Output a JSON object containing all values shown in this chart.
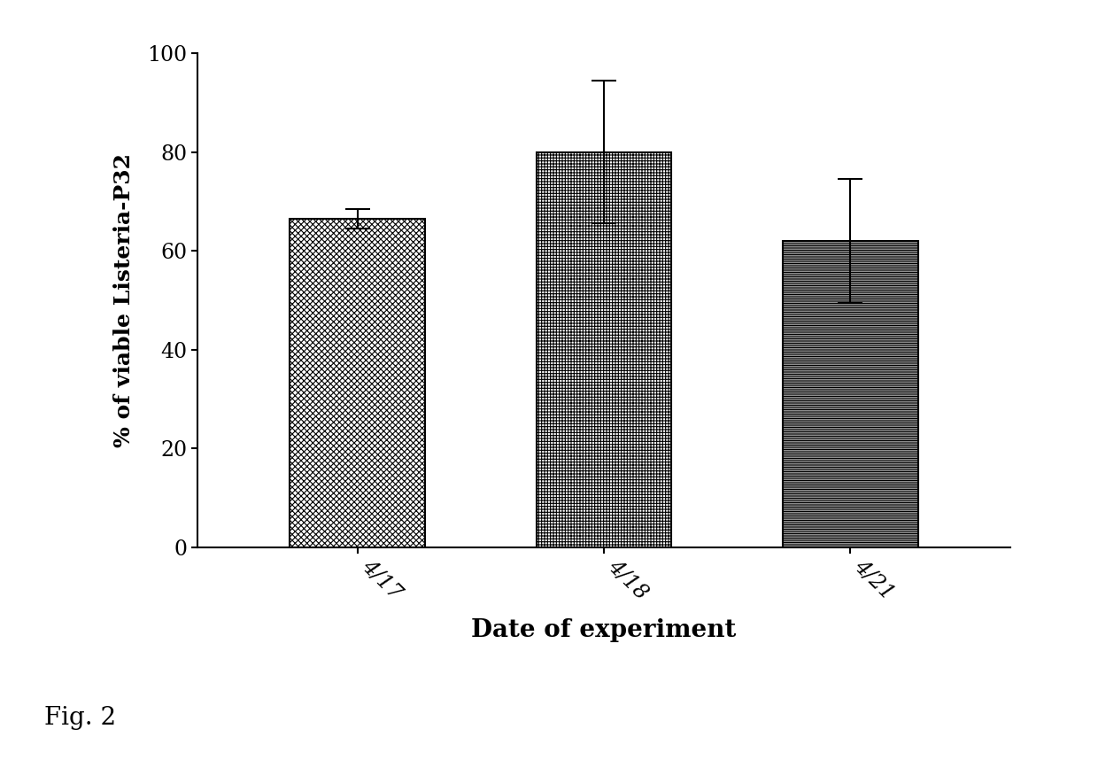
{
  "categories": [
    "4/17",
    "4/18",
    "4/21"
  ],
  "values": [
    66.5,
    80.0,
    62.0
  ],
  "errors": [
    2.0,
    14.5,
    12.5
  ],
  "xlabel": "Date of experiment",
  "ylabel": "% of viable Listeria-P32",
  "ylim": [
    0,
    100
  ],
  "yticks": [
    0,
    20,
    40,
    60,
    80,
    100
  ],
  "fig_caption": "Fig. 2",
  "background_color": "#ffffff",
  "bar_edge_color": "#000000",
  "hatch_patterns": [
    "x",
    "+",
    "--"
  ],
  "bar_width": 0.55,
  "xlabel_fontsize": 20,
  "ylabel_fontsize": 18,
  "tick_fontsize": 17,
  "caption_fontsize": 20,
  "hatch_linewidth": 0.8
}
